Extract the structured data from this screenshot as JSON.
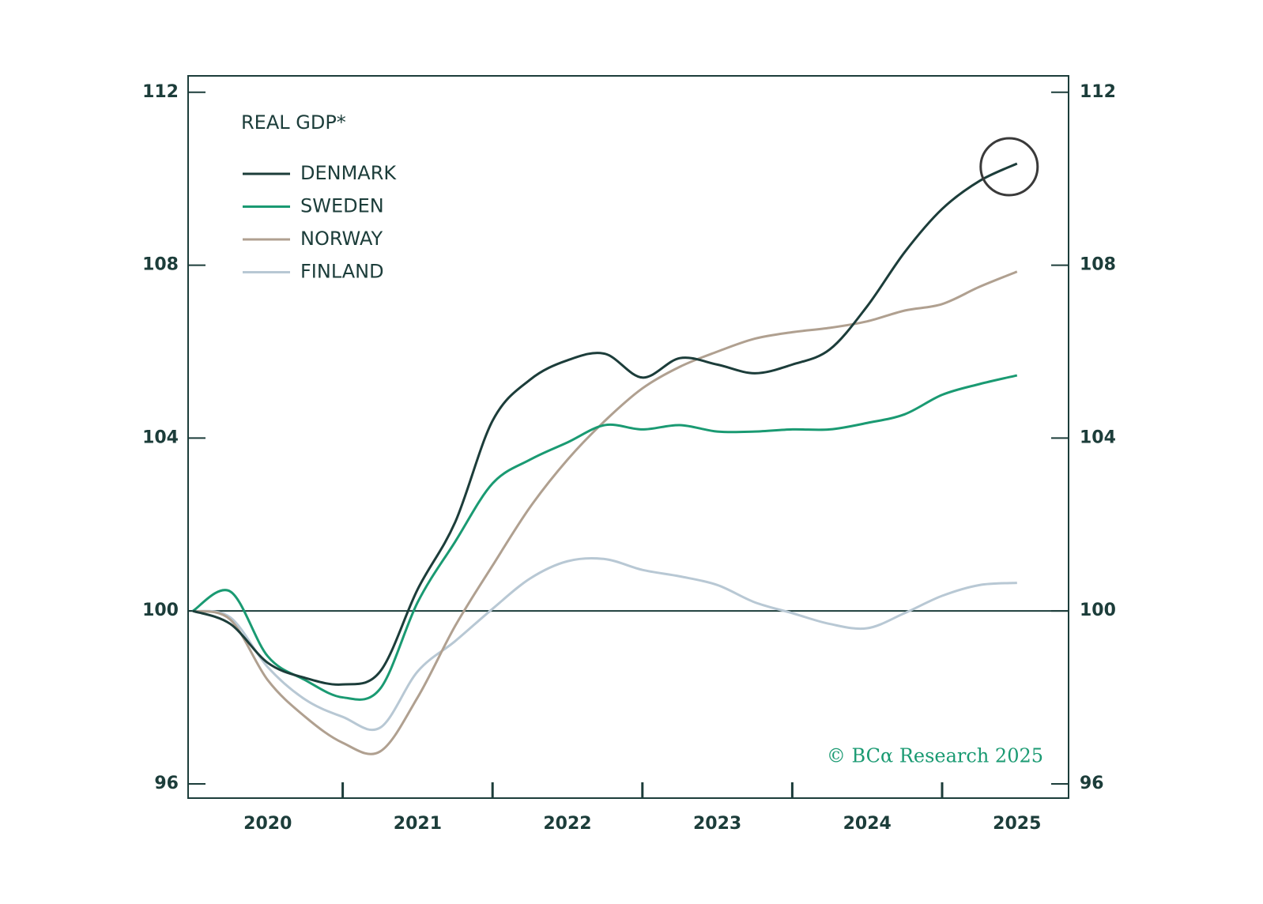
{
  "chart_data": {
    "type": "line",
    "title": "REAL GDP*",
    "source": "© BCα Research 2025",
    "categories": [
      "2020",
      null,
      null,
      null,
      "2021",
      null,
      null,
      null,
      "2022",
      null,
      null,
      null,
      "2023",
      null,
      null,
      null,
      "2024",
      null,
      null,
      null,
      "2025",
      null,
      null
    ],
    "series": [
      {
        "name": "DENMARK",
        "color": "#1c3d3a",
        "values": [
          100,
          99.7,
          98.8,
          98.45,
          98.3,
          98.6,
          100.5,
          102.05,
          104.4,
          105.35,
          105.8,
          105.95,
          105.4,
          105.85,
          105.7,
          105.5,
          105.7,
          106.05,
          107.05,
          108.3,
          109.3,
          109.95,
          110.35
        ]
      },
      {
        "name": "SWEDEN",
        "color": "#1a9a72",
        "values": [
          100,
          100.45,
          98.95,
          98.4,
          98.0,
          98.2,
          100.2,
          101.6,
          102.95,
          103.5,
          103.9,
          104.3,
          104.2,
          104.3,
          104.15,
          104.15,
          104.2,
          104.2,
          104.35,
          104.55,
          105.0,
          105.25,
          105.45
        ]
      },
      {
        "name": "NORWAY",
        "color": "#b0a090",
        "values": [
          100,
          99.8,
          98.4,
          97.55,
          96.95,
          96.75,
          98.0,
          99.65,
          101.05,
          102.4,
          103.5,
          104.4,
          105.15,
          105.65,
          106.0,
          106.3,
          106.45,
          106.55,
          106.7,
          106.95,
          107.1,
          107.5,
          107.85
        ]
      },
      {
        "name": "FINLAND",
        "color": "#b8c8d4",
        "values": [
          100,
          99.85,
          98.7,
          97.95,
          97.55,
          97.3,
          98.6,
          99.3,
          100.05,
          100.75,
          101.15,
          101.2,
          100.95,
          100.8,
          100.6,
          100.2,
          99.95,
          99.7,
          99.6,
          99.95,
          100.35,
          100.6,
          100.65
        ]
      }
    ],
    "ylim": [
      95.67,
      112.38
    ],
    "yticks": [
      96,
      100,
      104,
      108,
      112
    ],
    "reference_line": 100
  }
}
